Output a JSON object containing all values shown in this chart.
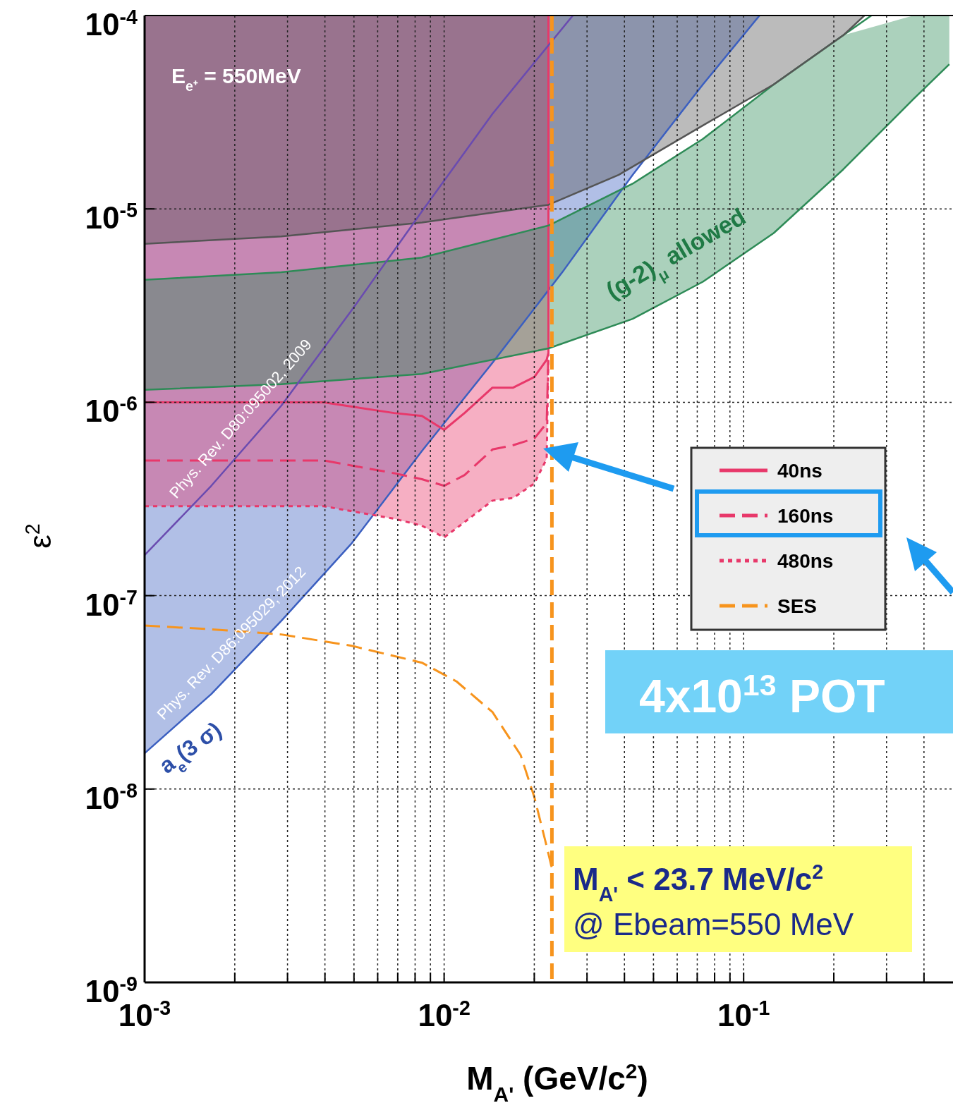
{
  "chart_data": {
    "type": "line",
    "xlabel": "M$_{A'}$ (GeV/c$^{2}$)",
    "ylabel": "ε$^{2}$",
    "log": "xy",
    "grid": true,
    "legend": "right",
    "xlim": [
      0.001,
      0.5
    ],
    "ylim": [
      1e-09,
      0.0001
    ],
    "xticks": [
      {
        "value": 0.001,
        "label": "10$^{-3}$"
      },
      {
        "value": 0.002,
        "label": null
      },
      {
        "value": 0.003,
        "label": null
      },
      {
        "value": 0.004,
        "label": null
      },
      {
        "value": 0.005,
        "label": null
      },
      {
        "value": 0.006,
        "label": null
      },
      {
        "value": 0.007,
        "label": null
      },
      {
        "value": 0.008,
        "label": null
      },
      {
        "value": 0.009,
        "label": null
      },
      {
        "value": 0.01,
        "label": "10$^{-2}$"
      },
      {
        "value": 0.02,
        "label": null
      },
      {
        "value": 0.03,
        "label": null
      },
      {
        "value": 0.04,
        "label": null
      },
      {
        "value": 0.05,
        "label": null
      },
      {
        "value": 0.06,
        "label": null
      },
      {
        "value": 0.07,
        "label": null
      },
      {
        "value": 0.08,
        "label": null
      },
      {
        "value": 0.09,
        "label": null
      },
      {
        "value": 0.1,
        "label": "10$^{-1}$"
      },
      {
        "value": 0.2,
        "label": null
      },
      {
        "value": 0.3,
        "label": null
      },
      {
        "value": 0.4,
        "label": null
      }
    ],
    "yticks": [
      {
        "value": 1e-09,
        "label": "10$^{-9}$"
      },
      {
        "value": 1e-08,
        "label": "10$^{-8}$"
      },
      {
        "value": 1e-07,
        "label": "10$^{-7}$"
      },
      {
        "value": 1e-06,
        "label": "10$^{-6}$"
      },
      {
        "value": 1e-05,
        "label": "10$^{-5}$"
      },
      {
        "value": 0.0001,
        "label": "10$^{-4}$"
      }
    ],
    "series": [
      {
        "color": "#3b5fc0",
        "x": [
          0.001,
          0.00167,
          0.00286,
          0.00492,
          0.00843,
          0.0145,
          0.0248,
          0.0426,
          0.0731,
          0.113
        ],
        "values": [
          1.53e-08,
          3.1e-08,
          7.4e-08,
          1.87e-07,
          5.6e-07,
          1.6e-06,
          4.7e-06,
          1.5e-05,
          4.4e-05,
          0.0001
        ],
        "lower": [
          1.53e-08,
          3.1e-08,
          7.4e-08,
          1.87e-07,
          5.6e-07,
          1.6e-06,
          4.7e-06,
          1.5e-05,
          4.4e-05,
          0.0001
        ],
        "upper": [
          0.0001,
          0.0001,
          0.0001,
          0.0001,
          0.0001,
          0.0001,
          0.0001,
          0.0001,
          0.0001,
          0.0001
        ]
      },
      {
        "name": "40ns",
        "color": "#e8386a",
        "line_style": "solid",
        "x": [
          0.001,
          0.00396,
          0.0068,
          0.00843,
          0.01,
          0.0117,
          0.0145,
          0.017,
          0.02,
          0.022,
          0.0223,
          0.0223
        ],
        "values": [
          1e-06,
          1e-06,
          8.8e-07,
          8.5e-07,
          7.2e-07,
          8.8e-07,
          1.19e-06,
          1.19e-06,
          1.35e-06,
          1.66e-06,
          1.8e-06,
          0.0001
        ]
      },
      {
        "name": "160ns",
        "color": "#e8386a",
        "line_style": "dashed",
        "x": [
          0.001,
          0.00396,
          0.0068,
          0.00843,
          0.01,
          0.0117,
          0.0145,
          0.017,
          0.02,
          0.022,
          0.0223
        ],
        "values": [
          5e-07,
          5e-07,
          4.3e-07,
          4e-07,
          3.7e-07,
          4.2e-07,
          5.7e-07,
          6e-07,
          6.5e-07,
          7.8e-07,
          1.8e-06
        ]
      },
      {
        "name": "480ns",
        "color": "#e8386a",
        "line_style": "dotted",
        "x": [
          0.001,
          0.00396,
          0.0068,
          0.00843,
          0.01,
          0.0117,
          0.0145,
          0.017,
          0.02,
          0.022,
          0.0223
        ],
        "values": [
          2.9e-07,
          2.9e-07,
          2.5e-07,
          2.3e-07,
          2e-07,
          2.4e-07,
          3.1e-07,
          3.2e-07,
          3.8e-07,
          5.1e-07,
          1.8e-06
        ],
        "lower": [
          2.9e-07,
          2.9e-07,
          2.5e-07,
          2.3e-07,
          2e-07,
          2.4e-07,
          3.1e-07,
          3.2e-07,
          3.8e-07,
          5.1e-07,
          1.8e-06
        ],
        "upper": [
          0.0001,
          0.0001,
          0.0001,
          0.0001,
          0.0001,
          0.0001,
          0.0001,
          0.0001,
          0.0001,
          0.0001,
          0.0001
        ]
      },
      {
        "color": "#2e8b57",
        "x": [
          0.001,
          0.00286,
          0.00843,
          0.0223,
          0.0426,
          0.0731,
          0.126,
          0.215,
          0.369,
          0.486
        ],
        "values": [
          1.16e-06,
          1.24e-06,
          1.4e-06,
          1.9e-06,
          2.7e-06,
          4.2e-06,
          7.5e-06,
          1.6e-05,
          3.7e-05,
          5.6e-05
        ],
        "lower": [
          1.16e-06,
          1.24e-06,
          1.4e-06,
          1.9e-06,
          2.7e-06,
          4.2e-06,
          7.5e-06,
          1.6e-05,
          3.7e-05,
          5.6e-05
        ],
        "upper": [
          4.3e-06,
          4.7e-06,
          5.6e-06,
          8.2e-06,
          1.35e-05,
          2.3e-05,
          4.4e-05,
          7.9e-05,
          0.0001,
          0.0001
        ]
      },
      {
        "color": "#2e8b57",
        "x": [
          0.001,
          0.00286,
          0.00843,
          0.0223,
          0.0426,
          0.0731,
          0.126,
          0.215,
          0.267
        ],
        "values": [
          4.3e-06,
          4.7e-06,
          5.6e-06,
          8.2e-06,
          1.35e-05,
          2.3e-05,
          4.4e-05,
          7.9e-05,
          0.0001
        ]
      },
      {
        "color": "#555555",
        "x": [
          0.001,
          0.00286,
          0.00843,
          0.0223,
          0.0383,
          0.0731,
          0.126,
          0.215,
          0.253
        ],
        "values": [
          6.6e-06,
          7.2e-06,
          8.5e-06,
          1.05e-05,
          1.5e-05,
          2.7e-05,
          4.4e-05,
          7.9e-05,
          0.0001
        ],
        "lower": [
          6.6e-06,
          7.2e-06,
          8.5e-06,
          1.05e-05,
          1.5e-05,
          2.7e-05,
          4.4e-05,
          7.9e-05,
          0.0001
        ],
        "upper": [
          0.0001,
          0.0001,
          0.0001,
          0.0001,
          0.0001,
          0.0001,
          0.0001,
          0.0001,
          0.0001
        ]
      },
      {
        "color": "#6a4bb0",
        "x": [
          0.001,
          0.00167,
          0.00286,
          0.00492,
          0.00843,
          0.0145,
          0.0269
        ],
        "values": [
          1.62e-07,
          3.7e-07,
          9.6e-07,
          3e-06,
          9.7e-06,
          3.1e-05,
          0.0001
        ]
      },
      {
        "name": "SES",
        "color": "#f7941d",
        "line_style": "dashed",
        "x": [
          0.001,
          0.00167,
          0.00286,
          0.00492,
          0.00843,
          0.011,
          0.0145,
          0.018,
          0.02,
          0.0217,
          0.0229
        ],
        "values": [
          7e-08,
          6.7e-08,
          6.3e-08,
          5.5e-08,
          4.5e-08,
          3.6e-08,
          2.5e-08,
          1.5e-08,
          9.1e-09,
          5.5e-09,
          3.9e-09
        ]
      }
    ],
    "ref_lines": [
      {
        "axis": "x",
        "value": 0.0229,
        "color": "#f7941d",
        "line_style": "dashed"
      }
    ],
    "annotations": [
      "E$_{e⁺}$ = 550MeV",
      "(g-2)$_{μ}$ allowed",
      "a$_{e}$(3 σ)",
      "Phys. Rev. D80:095002, 2009",
      "Phys. Rev. D86:095029, 2012",
      "4x10$^{13}$ POT",
      "M$_{A'}$ < 23.7 MeV/c$^{2}$",
      "@ Ebeam=550 MeV"
    ]
  }
}
